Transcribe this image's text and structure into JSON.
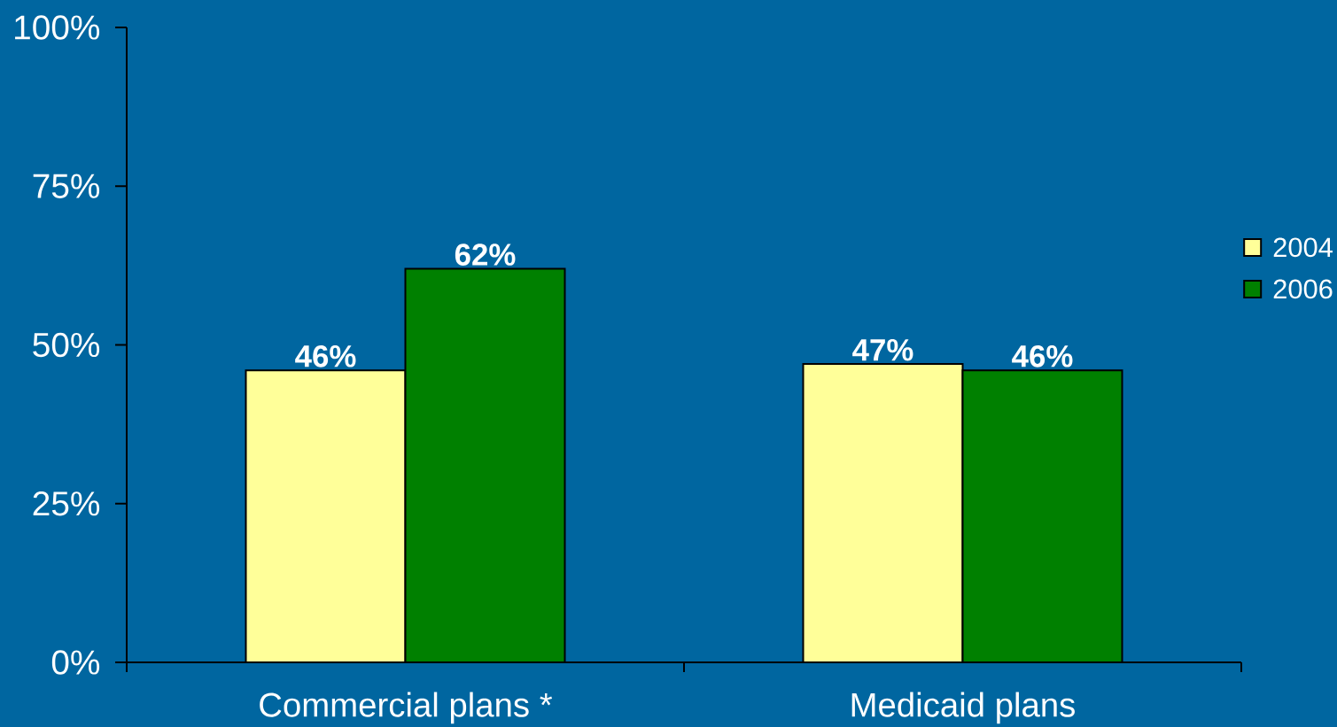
{
  "chart_data": {
    "type": "bar",
    "categories": [
      "Commercial plans *",
      "Medicaid plans"
    ],
    "series": [
      {
        "name": "2004",
        "color": "#ffff99",
        "values": [
          46,
          47
        ],
        "value_labels": [
          "46%",
          "47%"
        ]
      },
      {
        "name": "2006",
        "color": "#008000",
        "values": [
          62,
          46
        ],
        "value_labels": [
          "62%",
          "46%"
        ]
      }
    ],
    "ylim": [
      0,
      100
    ],
    "yticks": [
      {
        "value": 0,
        "label": "0%"
      },
      {
        "value": 25,
        "label": "25%"
      },
      {
        "value": 50,
        "label": "50%"
      },
      {
        "value": 75,
        "label": "75%"
      },
      {
        "value": 100,
        "label": "100%"
      }
    ],
    "legend": "right"
  }
}
